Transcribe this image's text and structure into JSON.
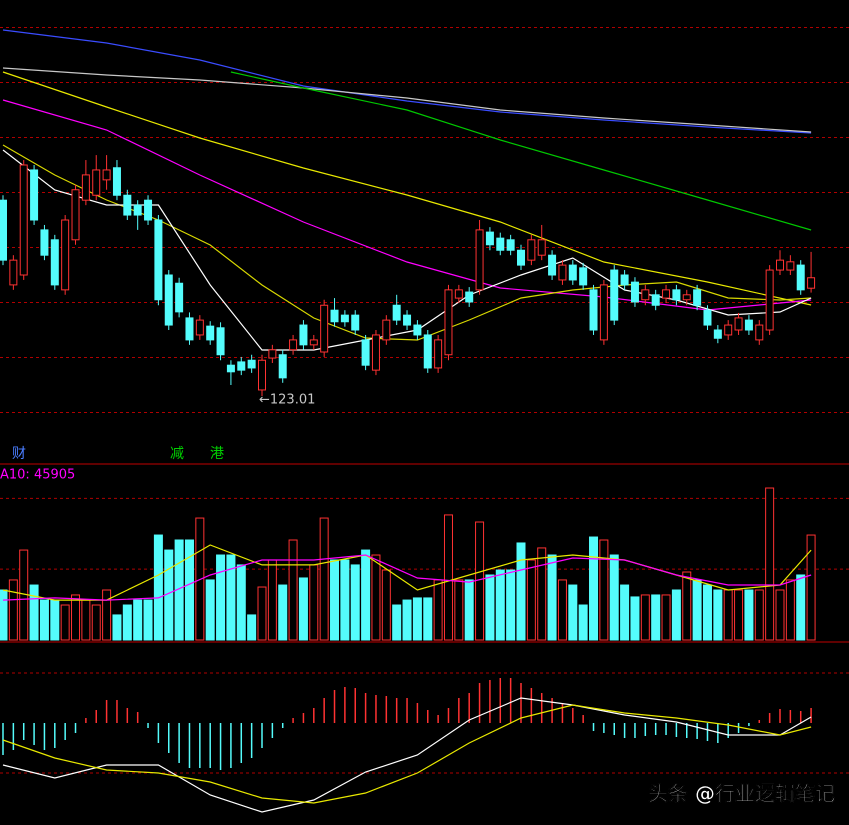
{
  "chart_data": [
    {
      "type": "candlestick",
      "ylim": [
        115,
        195
      ],
      "yticks": [
        120,
        130,
        140,
        150,
        160,
        170,
        180,
        190
      ],
      "grid": true,
      "up_color": "#ff3232",
      "down_color": "#54fcfc",
      "open": [
        158.6,
        143.2,
        145.0,
        164.1,
        153.2,
        151.4,
        142.3,
        151.4,
        158.6,
        159.5,
        162.3,
        164.5,
        159.5,
        157.7,
        158.6,
        155.0,
        145.0,
        143.5,
        137.2,
        134.1,
        135.7,
        135.4,
        128.6,
        129.2,
        129.5,
        124.1,
        129.9,
        130.5,
        131.4,
        135.9,
        132.3,
        131.0,
        138.6,
        137.7,
        137.7,
        133.2,
        127.7,
        133.2,
        139.5,
        137.7,
        135.9,
        134.1,
        128.1,
        130.5,
        140.8,
        141.9,
        142.3,
        152.8,
        151.7,
        151.4,
        149.5,
        147.7,
        148.6,
        148.6,
        144.1,
        146.8,
        146.3,
        142.3,
        133.2,
        145.9,
        145.0,
        143.7,
        140.5,
        141.4,
        140.8,
        142.3,
        140.5,
        142.3,
        138.6,
        135.0,
        134.1,
        135.0,
        136.8,
        133.2,
        135.0,
        145.9,
        145.9,
        146.8,
        142.6
      ],
      "high": [
        159.5,
        148.6,
        165.9,
        165.0,
        154.1,
        152.3,
        155.9,
        161.4,
        165.9,
        166.8,
        166.8,
        165.9,
        160.5,
        158.6,
        159.5,
        155.9,
        145.9,
        144.5,
        138.2,
        137.7,
        136.6,
        136.4,
        129.5,
        130.1,
        130.5,
        130.5,
        132.3,
        131.4,
        134.1,
        136.8,
        134.1,
        140.5,
        140.8,
        138.6,
        138.6,
        134.1,
        135.0,
        137.7,
        141.4,
        138.6,
        136.8,
        135.0,
        134.1,
        143.2,
        143.2,
        142.8,
        155.0,
        153.7,
        152.7,
        152.3,
        150.5,
        152.3,
        154.1,
        149.5,
        147.7,
        147.7,
        147.2,
        143.2,
        144.1,
        146.8,
        145.9,
        144.6,
        143.2,
        142.3,
        143.2,
        143.2,
        142.3,
        143.2,
        139.5,
        135.9,
        136.8,
        138.1,
        137.7,
        136.8,
        146.8,
        149.5,
        148.6,
        147.7,
        149.2
      ],
      "low": [
        146.8,
        142.3,
        144.1,
        154.1,
        147.7,
        142.3,
        141.4,
        150.5,
        157.7,
        158.6,
        160.5,
        158.6,
        155.0,
        153.2,
        154.1,
        139.5,
        135.0,
        137.3,
        132.3,
        133.2,
        132.3,
        129.5,
        125.0,
        126.8,
        127.2,
        123.01,
        129.0,
        125.4,
        130.5,
        131.4,
        131.4,
        130.1,
        135.6,
        135.6,
        134.1,
        127.7,
        126.8,
        132.3,
        135.9,
        135.0,
        133.2,
        127.2,
        127.2,
        129.5,
        139.9,
        139.2,
        141.4,
        149.5,
        148.6,
        148.6,
        145.9,
        146.8,
        147.7,
        144.1,
        143.2,
        143.2,
        142.3,
        134.1,
        132.3,
        135.9,
        142.3,
        139.2,
        139.5,
        138.6,
        139.9,
        139.5,
        139.5,
        138.6,
        135.0,
        132.6,
        133.2,
        134.1,
        134.1,
        132.3,
        134.1,
        145.0,
        145.0,
        141.4,
        141.8
      ],
      "close": [
        147.7,
        147.7,
        165.0,
        155.0,
        148.6,
        143.2,
        155.0,
        160.5,
        163.2,
        164.1,
        164.1,
        159.5,
        155.9,
        155.9,
        155.0,
        140.5,
        135.9,
        138.3,
        133.2,
        136.8,
        133.2,
        130.5,
        127.4,
        127.7,
        128.1,
        129.5,
        131.4,
        126.3,
        133.2,
        132.3,
        133.2,
        139.5,
        136.5,
        136.5,
        135.0,
        128.6,
        134.1,
        136.8,
        136.8,
        135.9,
        134.1,
        128.1,
        133.2,
        142.3,
        142.3,
        140.1,
        153.2,
        150.5,
        149.5,
        149.5,
        146.8,
        151.4,
        151.4,
        145.0,
        146.8,
        144.1,
        143.2,
        135.0,
        143.2,
        136.8,
        143.2,
        140.1,
        142.3,
        139.5,
        142.3,
        140.5,
        141.4,
        139.5,
        135.9,
        133.5,
        135.9,
        137.2,
        135.0,
        135.9,
        145.9,
        147.7,
        147.4,
        142.3,
        144.5
      ],
      "series": [
        {
          "color": "#3a4cff",
          "x": [
            0,
            10,
            19,
            29,
            39,
            48,
            58,
            68,
            78
          ],
          "values": [
            189.55,
            187.18,
            184.09,
            179.36,
            176.64,
            174.64,
            173.18,
            171.91,
            170.82
          ]
        },
        {
          "color": "#c8c8c8",
          "x": [
            0,
            10,
            19,
            29,
            39,
            48,
            58,
            68,
            78
          ],
          "values": [
            182.64,
            181.36,
            180.45,
            179.0,
            177.18,
            175.0,
            173.55,
            172.27,
            171.0
          ]
        },
        {
          "color": "#00c800",
          "x": [
            22,
            29,
            39,
            48,
            58,
            68,
            78
          ],
          "values": [
            181.91,
            179.0,
            175.0,
            169.55,
            164.09,
            158.64,
            153.18
          ]
        },
        {
          "color": "#e8e800",
          "x": [
            0,
            10,
            19,
            29,
            39,
            48,
            58,
            68,
            78
          ],
          "values": [
            181.91,
            175.55,
            169.91,
            164.45,
            159.55,
            154.64,
            147.36,
            143.73,
            139.55
          ]
        },
        {
          "color": "#ff00ff",
          "x": [
            0,
            10,
            19,
            29,
            39,
            48,
            58,
            68,
            78
          ],
          "values": [
            176.82,
            171.36,
            163.18,
            154.64,
            147.36,
            142.64,
            141.0,
            138.64,
            140.45
          ]
        },
        {
          "color": "#d8d800",
          "x": [
            0,
            5,
            10,
            15,
            20,
            25,
            30,
            35,
            40,
            45,
            50,
            55,
            60,
            65,
            70,
            75,
            78
          ],
          "values": [
            168.64,
            163.18,
            158.64,
            155.0,
            150.45,
            143.18,
            137.18,
            133.55,
            133.18,
            136.82,
            140.82,
            142.27,
            143.18,
            143.73,
            140.82,
            140.45,
            140.82
          ]
        },
        {
          "color": "#ffffff",
          "x": [
            0,
            5,
            10,
            15,
            20,
            25,
            30,
            35,
            40,
            45,
            50,
            55,
            60,
            65,
            70,
            75,
            78
          ],
          "values": [
            167.73,
            160.45,
            157.73,
            157.73,
            143.18,
            131.36,
            131.36,
            133.18,
            135.0,
            141.36,
            145.0,
            148.09,
            142.27,
            140.45,
            137.73,
            138.27,
            140.82
          ]
        }
      ],
      "annotation": "←123.01",
      "events": [
        "财",
        "减",
        "港"
      ]
    },
    {
      "type": "volume",
      "label": "A10: 45905",
      "ylim": [
        0,
        123550
      ],
      "yticks": [
        50000,
        100000
      ],
      "grid": true,
      "values": [
        35300,
        42400,
        63500,
        38800,
        28200,
        28200,
        24700,
        31800,
        28200,
        24700,
        35300,
        17700,
        24700,
        28200,
        28200,
        74100,
        63500,
        70600,
        70600,
        86100,
        42400,
        60000,
        60000,
        53000,
        17700,
        37400,
        56500,
        38800,
        70600,
        43800,
        53000,
        86100,
        56500,
        56500,
        53000,
        63500,
        60000,
        49400,
        24700,
        28200,
        29700,
        29700,
        42400,
        88300,
        42400,
        42400,
        83300,
        45900,
        49400,
        49400,
        68500,
        56500,
        65000,
        60000,
        42400,
        38800,
        24700,
        72700,
        70600,
        60000,
        38800,
        30400,
        31800,
        31800,
        31800,
        35300,
        48000,
        42400,
        38800,
        35300,
        35300,
        35300,
        35300,
        35300,
        107300,
        35300,
        42400,
        45900,
        74100
      ],
      "series": [
        {
          "color": "#e8e800",
          "x": [
            0,
            5,
            10,
            15,
            20,
            25,
            30,
            35,
            40,
            45,
            50,
            55,
            60,
            65,
            70,
            75,
            78
          ],
          "values": [
            35300,
            28200,
            28200,
            45900,
            67100,
            53000,
            53000,
            60000,
            35300,
            45900,
            56500,
            60000,
            56500,
            45900,
            35300,
            38800,
            63500
          ]
        },
        {
          "color": "#ff00ff",
          "x": [
            0,
            5,
            10,
            15,
            20,
            25,
            30,
            35,
            40,
            45,
            50,
            55,
            60,
            65,
            70,
            75,
            78
          ],
          "values": [
            28200,
            29700,
            28200,
            29700,
            45900,
            56500,
            56500,
            60000,
            43800,
            40900,
            49400,
            57900,
            56500,
            45900,
            38800,
            38800,
            45905
          ]
        }
      ]
    },
    {
      "type": "macd",
      "ylim": [
        -9.7,
        7.3
      ],
      "yticks": [
        -5,
        5
      ],
      "grid": true,
      "values": [
        -3.2,
        -2.7,
        -1.7,
        -2.2,
        -2.7,
        -2.5,
        -1.7,
        -1.0,
        0.5,
        1.3,
        2.3,
        2.3,
        1.5,
        1.1,
        -0.5,
        -2.0,
        -3.0,
        -4.0,
        -4.5,
        -4.5,
        -4.5,
        -4.7,
        -4.5,
        -4.0,
        -3.5,
        -2.5,
        -1.5,
        -0.5,
        0.5,
        1.0,
        1.5,
        2.5,
        3.3,
        3.6,
        3.5,
        3.0,
        2.8,
        2.7,
        2.5,
        2.5,
        2.0,
        1.3,
        0.8,
        1.5,
        2.5,
        3.0,
        4.0,
        4.3,
        4.5,
        4.5,
        4.0,
        3.5,
        3.0,
        2.5,
        2.0,
        1.5,
        0.8,
        -0.8,
        -1.0,
        -1.2,
        -1.5,
        -1.5,
        -1.3,
        -1.2,
        -1.2,
        -1.4,
        -1.5,
        -1.6,
        -1.8,
        -2.0,
        -1.5,
        -1.0,
        -0.3,
        0.3,
        1.0,
        1.4,
        1.3,
        1.2,
        1.5
      ],
      "series": [
        {
          "color": "#ffffff",
          "x": [
            0,
            5,
            10,
            15,
            20,
            25,
            30,
            35,
            40,
            45,
            50,
            55,
            60,
            65,
            70,
            75,
            78
          ],
          "values": [
            -4.2,
            -5.5,
            -4.2,
            -4.2,
            -7.2,
            -8.9,
            -7.7,
            -4.9,
            -3.2,
            0.3,
            2.5,
            1.8,
            0.8,
            0.1,
            -1.2,
            -1.2,
            0.6
          ]
        },
        {
          "color": "#e8e800",
          "x": [
            0,
            5,
            10,
            15,
            20,
            25,
            30,
            35,
            40,
            45,
            50,
            55,
            60,
            65,
            70,
            75,
            78
          ],
          "values": [
            -1.7,
            -3.5,
            -4.7,
            -5.0,
            -5.9,
            -7.5,
            -8.0,
            -7.0,
            -5.0,
            -2.0,
            0.5,
            1.8,
            1.0,
            0.5,
            -0.2,
            -1.2,
            -0.4
          ]
        }
      ]
    }
  ],
  "watermark": "头条 @行业逻辑笔记"
}
